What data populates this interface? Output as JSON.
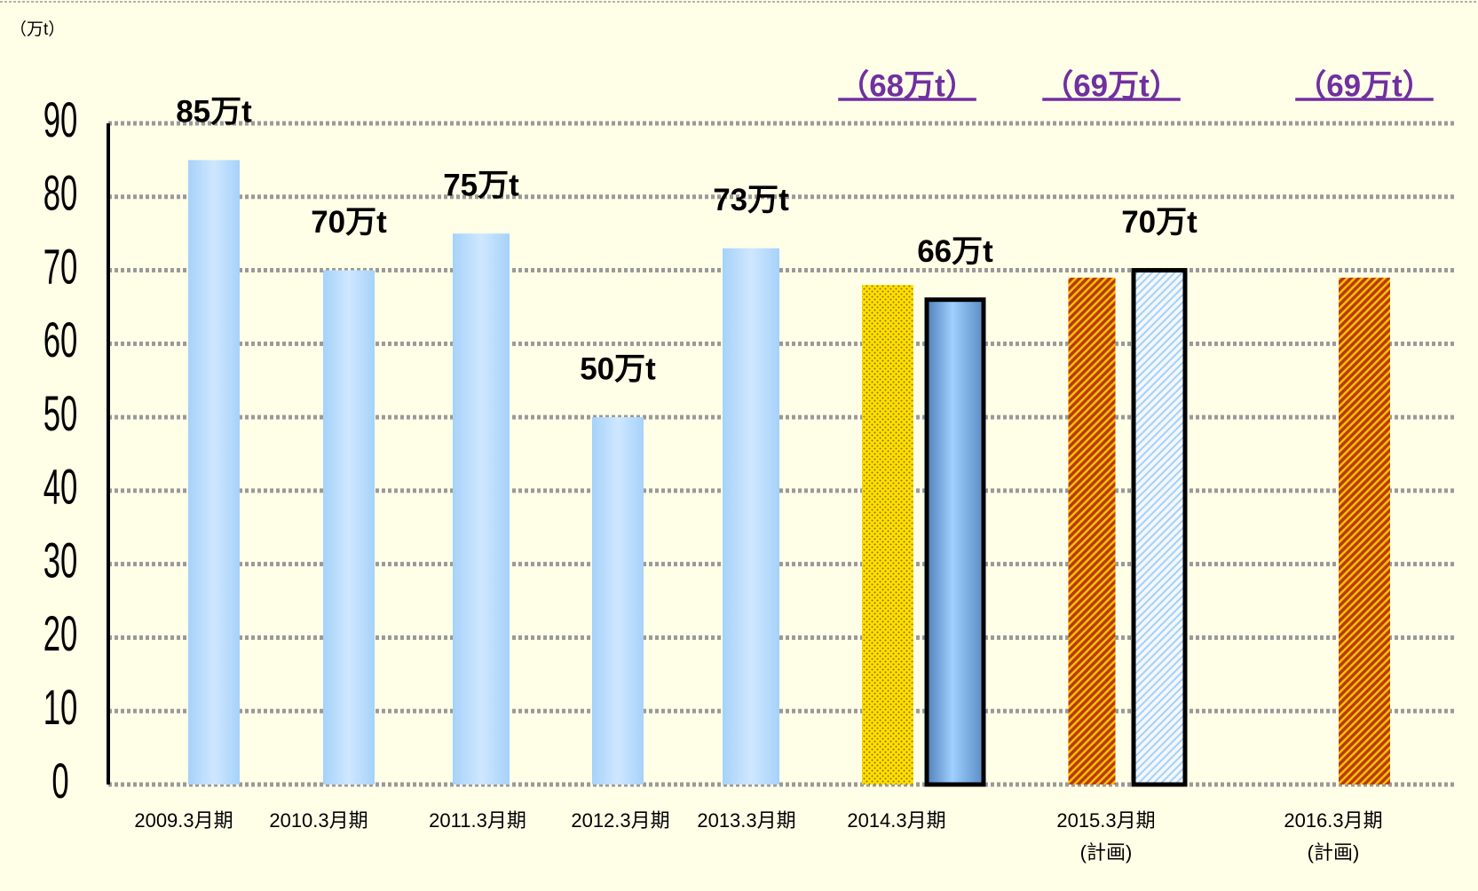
{
  "chart_data": {
    "type": "bar",
    "unit_label": "（万t）",
    "categories": [
      "2009.3月期",
      "2010.3月期",
      "2011.3月期",
      "2012.3月期",
      "2013.3月期",
      "2014.3月期",
      "2015.3月期",
      "2016.3月期"
    ],
    "category_notes": [
      null,
      null,
      null,
      null,
      null,
      null,
      "(計画)",
      "(計画)"
    ],
    "series": [
      {
        "values": [
          85,
          70,
          75,
          50,
          73,
          66,
          70,
          null
        ],
        "value_labels": [
          "85万t",
          "70万t",
          "75万t",
          "50万t",
          "73万t",
          "66万t",
          "70万t",
          null
        ],
        "patterns": [
          "gradient",
          "gradient",
          "gradient",
          "gradient",
          "gradient",
          "gradient-dark-outlined",
          "hatch-light-outlined",
          null
        ]
      },
      {
        "values": [
          null,
          null,
          null,
          null,
          null,
          68,
          69,
          69
        ],
        "value_labels": [
          null,
          null,
          null,
          null,
          null,
          "（68万t）",
          "（69万t）",
          "（69万t）"
        ],
        "patterns": [
          null,
          null,
          null,
          null,
          null,
          "dots-yellow",
          "hatch-brown",
          "hatch-brown"
        ]
      }
    ],
    "ylim": [
      0,
      90
    ],
    "yticks": [
      0,
      10,
      20,
      30,
      40,
      50,
      60,
      70,
      80,
      90
    ],
    "grid": true
  }
}
